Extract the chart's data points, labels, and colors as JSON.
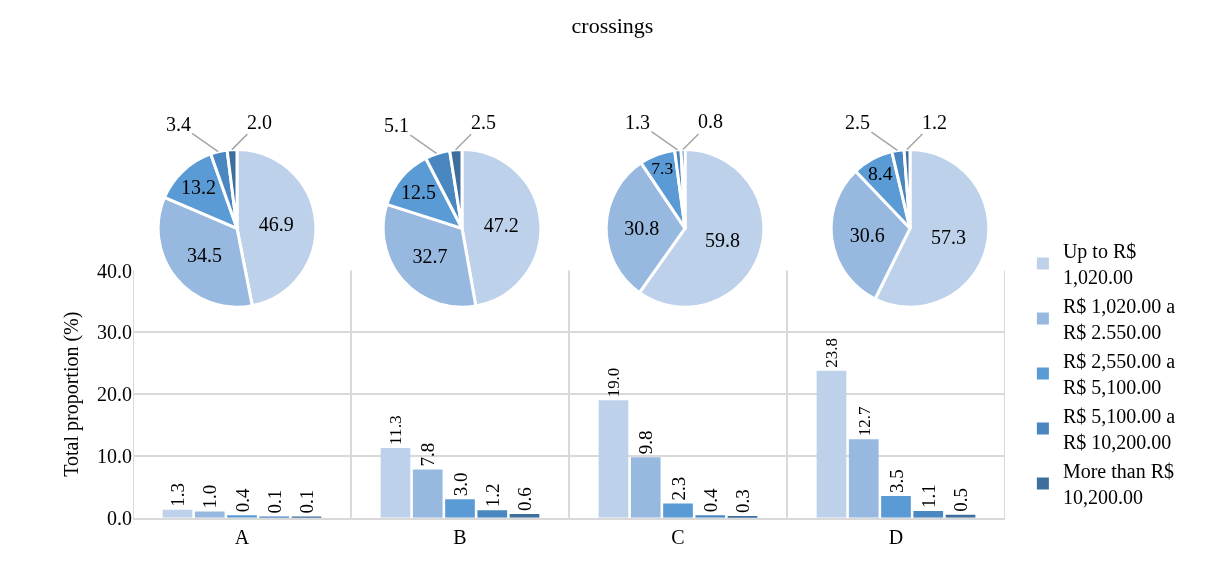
{
  "chart_data": [
    {
      "type": "bar",
      "title": "crossings",
      "ylabel": "Total proportion (%)",
      "categories": [
        "A",
        "B",
        "C",
        "D"
      ],
      "series": [
        {
          "name": "Up to R$ 1,020.00",
          "color": "#bdd1ea",
          "values": [
            1.3,
            11.3,
            19.0,
            23.8
          ],
          "value_labels": [
            "1.3",
            "11.3",
            "19.0",
            "23.8"
          ]
        },
        {
          "name": "R$ 1,020.00 a R$ 2.550.00",
          "color": "#97b9e0",
          "values": [
            1.0,
            7.8,
            9.8,
            12.7
          ],
          "value_labels": [
            "1.0",
            "7.8",
            "9.8",
            "12.7"
          ]
        },
        {
          "name": "R$ 2,550.00 a R$ 5,100.00",
          "color": "#5b9bd5",
          "values": [
            0.4,
            3.0,
            2.3,
            3.5
          ],
          "value_labels": [
            "0.4",
            "3.0",
            "2.3",
            "3.5"
          ]
        },
        {
          "name": "R$ 5,100.00 a R$ 10,200.00",
          "color": "#4a86c0",
          "values": [
            0.1,
            1.2,
            0.4,
            1.1
          ],
          "value_labels": [
            "0.1",
            "1.2",
            "0.4",
            "1.1"
          ]
        },
        {
          "name": "More than R$ 10,200.00",
          "color": "#3d6e9e",
          "values": [
            0.1,
            0.6,
            0.3,
            0.5
          ],
          "value_labels": [
            "0.1",
            "0.6",
            "0.3",
            "0.5"
          ]
        }
      ],
      "ylim": [
        0,
        40
      ],
      "yticks": [
        {
          "value": 0,
          "label": "0.0"
        },
        {
          "value": 10,
          "label": "10.0"
        },
        {
          "value": 20,
          "label": "20.0"
        },
        {
          "value": 30,
          "label": "30.0"
        },
        {
          "value": 40,
          "label": "40.0"
        }
      ],
      "grid": true,
      "legend": "right"
    },
    {
      "type": "pie",
      "categories": [
        null,
        null,
        null,
        null,
        null
      ],
      "values": [
        46.9,
        34.5,
        13.2,
        3.4,
        2.0
      ],
      "value_labels": [
        "46.9",
        "34.5",
        "13.2",
        "3.4",
        "2.0"
      ],
      "colors": [
        "#bdd1ea",
        "#97b9e0",
        "#5b9bd5",
        "#4a86c0",
        "#3d6e9e"
      ]
    },
    {
      "type": "pie",
      "categories": [
        null,
        null,
        null,
        null,
        null
      ],
      "values": [
        47.2,
        32.7,
        12.5,
        5.1,
        2.5
      ],
      "value_labels": [
        "47.2",
        "32.7",
        "12.5",
        "5.1",
        "2.5"
      ],
      "colors": [
        "#bdd1ea",
        "#97b9e0",
        "#5b9bd5",
        "#4a86c0",
        "#3d6e9e"
      ]
    },
    {
      "type": "pie",
      "categories": [
        null,
        null,
        null,
        null,
        null
      ],
      "values": [
        59.8,
        30.8,
        7.3,
        1.3,
        0.8
      ],
      "value_labels": [
        "59.8",
        "30.8",
        "7.3",
        "1.3",
        "0.8"
      ],
      "colors": [
        "#bdd1ea",
        "#97b9e0",
        "#5b9bd5",
        "#4a86c0",
        "#3d6e9e"
      ]
    },
    {
      "type": "pie",
      "categories": [
        null,
        null,
        null,
        null,
        null
      ],
      "values": [
        57.3,
        30.6,
        8.4,
        2.5,
        1.2
      ],
      "value_labels": [
        "57.3",
        "30.6",
        "8.4",
        "2.5",
        "1.2"
      ],
      "colors": [
        "#bdd1ea",
        "#97b9e0",
        "#5b9bd5",
        "#4a86c0",
        "#3d6e9e"
      ]
    }
  ]
}
